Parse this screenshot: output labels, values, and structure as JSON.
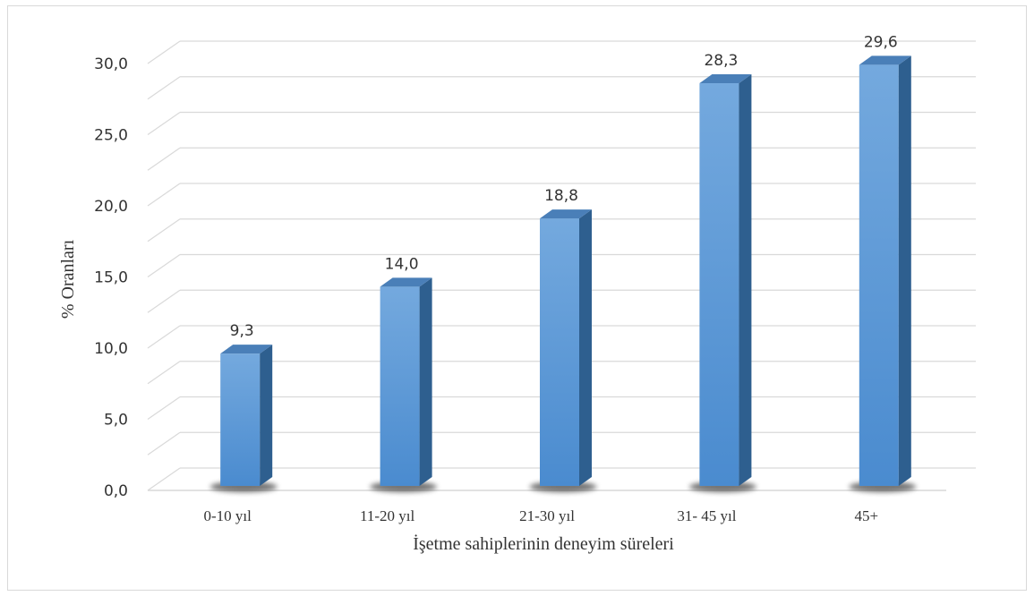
{
  "chart_data": {
    "type": "bar",
    "categories": [
      "0-10 yıl",
      "11-20 yıl",
      "21-30 yıl",
      "31- 45 yıl",
      "45+"
    ],
    "values": [
      9.3,
      14.0,
      18.8,
      28.3,
      29.6
    ],
    "value_labels": [
      "9,3",
      "14,0",
      "18,8",
      "28,3",
      "29,6"
    ],
    "xlabel": "İşetme sahiplerinin deneyim süreleri",
    "ylabel": "% Oranları",
    "ylim": [
      0,
      30
    ],
    "yticks": [
      "0,0",
      "5,0",
      "10,0",
      "15,0",
      "20,0",
      "25,0",
      "30,0"
    ],
    "grid": true,
    "style": "3d",
    "colors": {
      "bar_front": "#5b9bd5",
      "bar_side": "#2e5f8f",
      "bar_top": "#4a7fb8",
      "grid": "#d9d9d9",
      "shadow": "#000000"
    }
  }
}
